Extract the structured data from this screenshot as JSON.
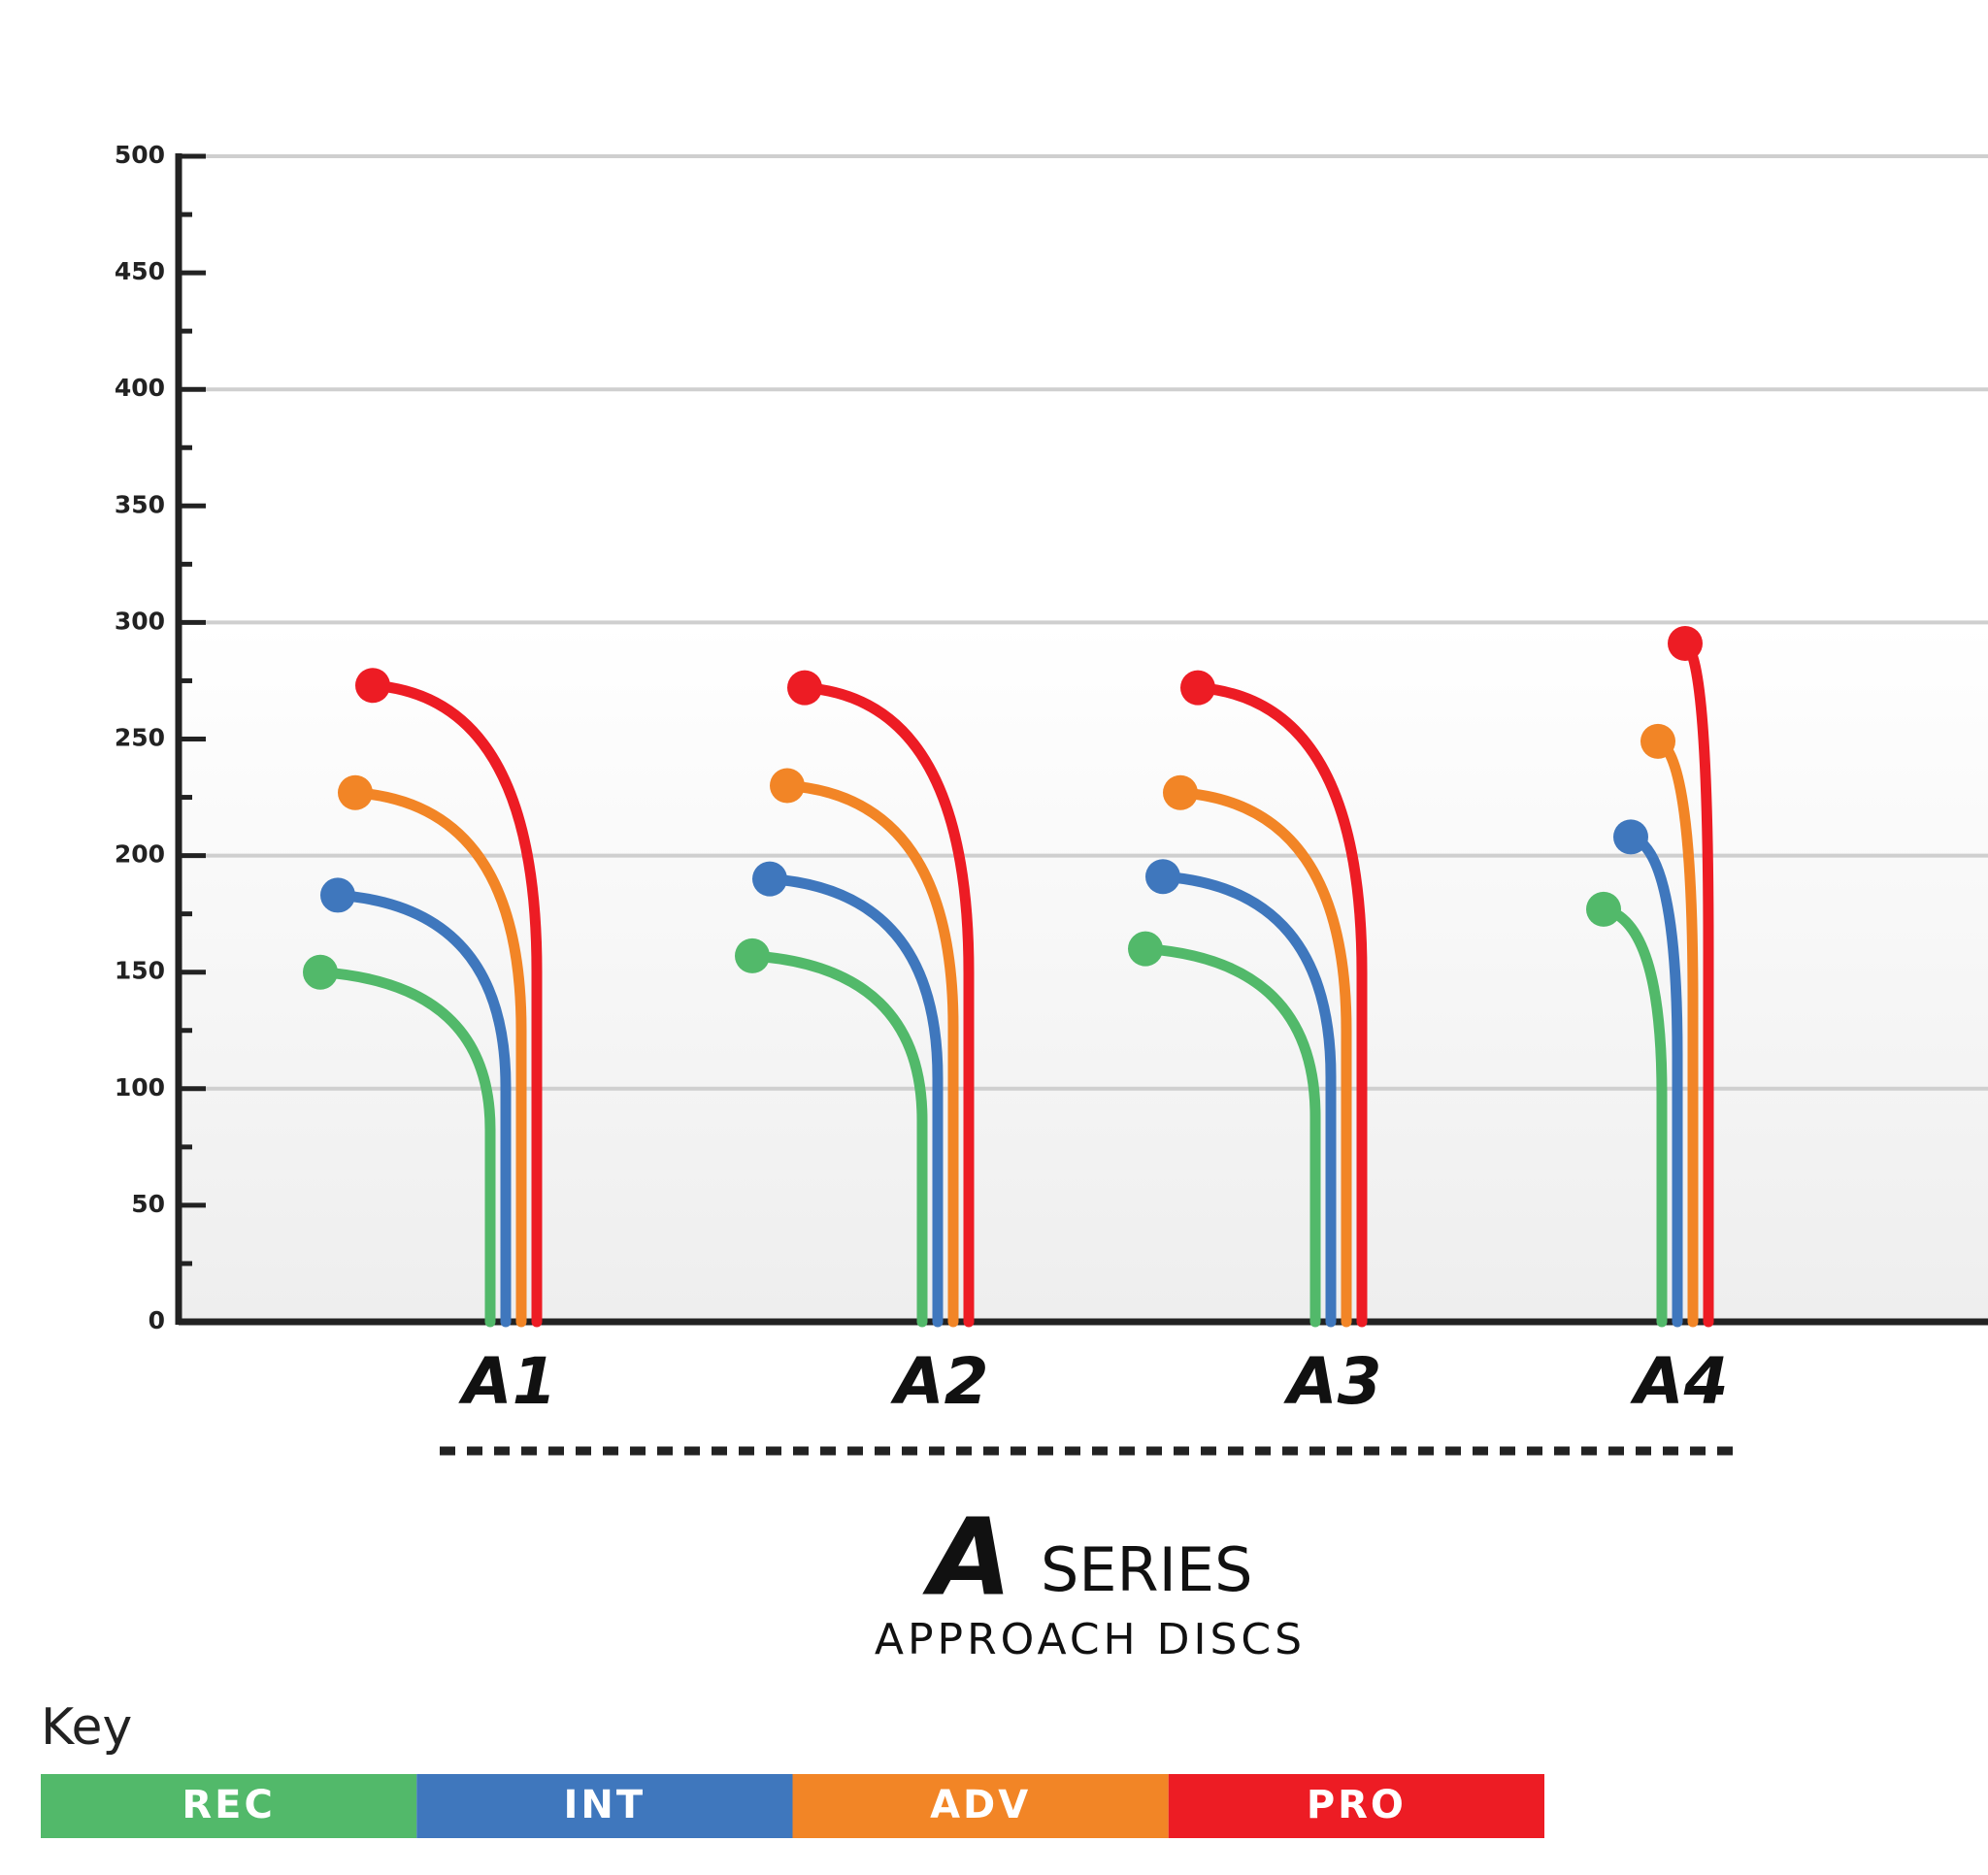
{
  "chart_data": {
    "type": "flight",
    "title_logo": "A",
    "title": "SERIES",
    "subtitle": "APPROACH DISCS",
    "legend_title": "Key",
    "categories": [
      "A1",
      "A2",
      "A3",
      "A4"
    ],
    "series": [
      {
        "name": "REC",
        "color": "#52b96a",
        "values": [
          150,
          157,
          160,
          177
        ]
      },
      {
        "name": "INT",
        "color": "#3f77bd",
        "values": [
          183,
          190,
          191,
          208
        ]
      },
      {
        "name": "ADV",
        "color": "#f28526",
        "values": [
          227,
          230,
          227,
          249
        ]
      },
      {
        "name": "PRO",
        "color": "#ed1c24",
        "values": [
          273,
          272,
          272,
          291
        ]
      }
    ],
    "ylim": [
      0,
      500
    ],
    "yticks": [
      0,
      50,
      100,
      150,
      200,
      250,
      300,
      350,
      400,
      450,
      500
    ],
    "grid": true
  }
}
